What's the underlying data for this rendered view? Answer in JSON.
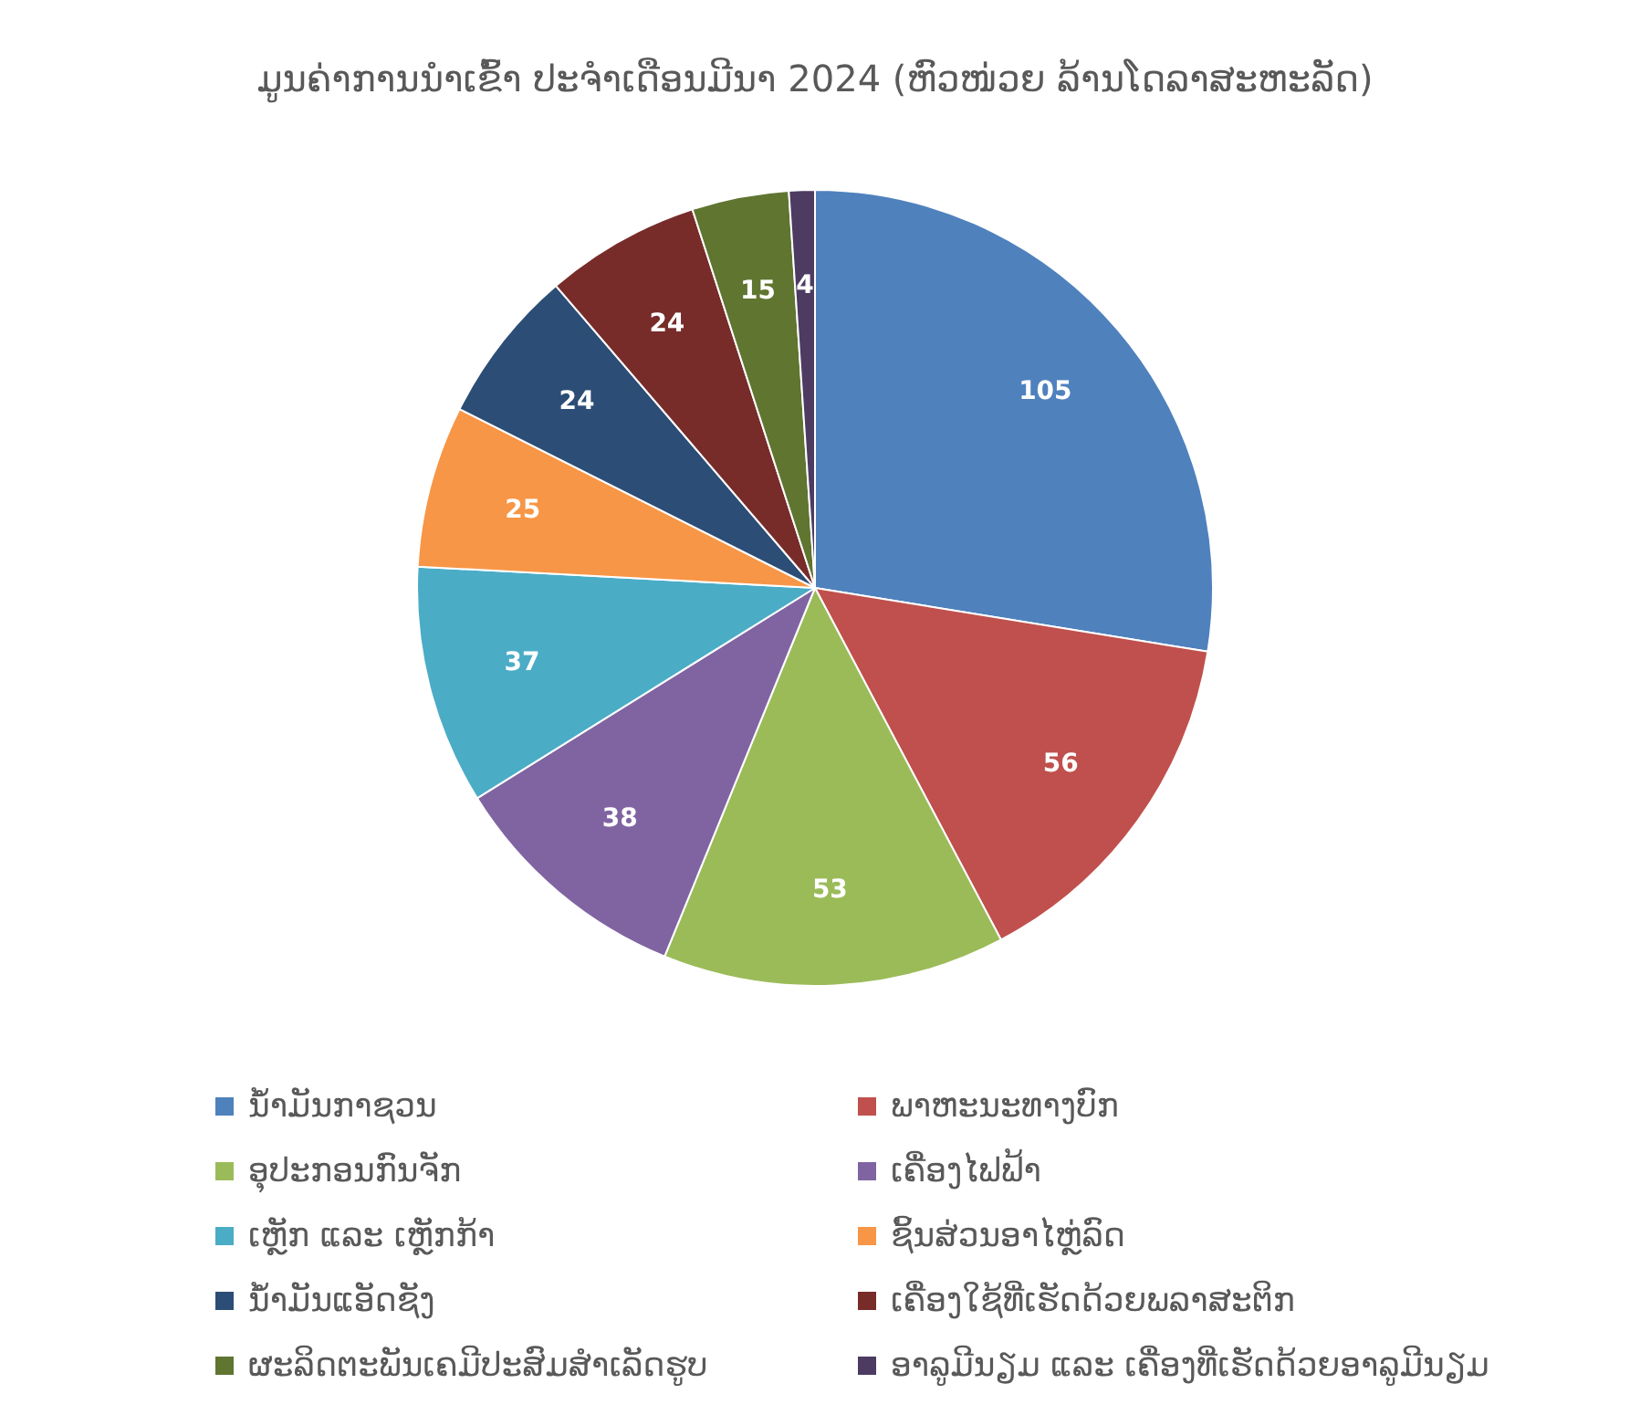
{
  "chart_data": {
    "type": "pie",
    "title": "ມູນຄ່າການນຳເຂົ້າ ປະຈຳເດືອນມີນາ 2024 (ຫົວໜ່ວຍ ລ້ານໂດລາສະຫະລັດ)",
    "categories": [
      "ນ້ຳມັນກາຊວນ",
      "ພາຫະນະທາງບົກ",
      "ອຸປະກອນກົນຈັກ",
      "ເຄື່ອງໄຟຟ້າ",
      "ເຫຼັກ ແລະ ເຫຼັກກ້າ",
      "ຊິ້ນສ່ວນອາໄຫຼ່ລົດ",
      "ນ້ຳມັນແອັດຊັງ",
      "ເຄື່ອງໃຊ້ທີ່ເຮັດດ້ວຍພລາສະຕິກ",
      "ຜະລິດຕະພັນເຄມີປະສົມສຳເລັດຮູບ",
      "ອາລູມີນຽມ ແລະ ເຄື່ອງທີ່ເຮັດດ້ວຍອາລູມີນຽມ"
    ],
    "values": [
      105,
      56,
      53,
      38,
      37,
      25,
      24,
      24,
      15,
      4
    ],
    "colors": [
      "#4f81bd",
      "#c0504d",
      "#9bbb59",
      "#8064a2",
      "#4bacc6",
      "#f79646",
      "#2c4d75",
      "#772c2a",
      "#5f7530",
      "#4d3b62"
    ],
    "data_labels": true,
    "legend": "bottom"
  }
}
